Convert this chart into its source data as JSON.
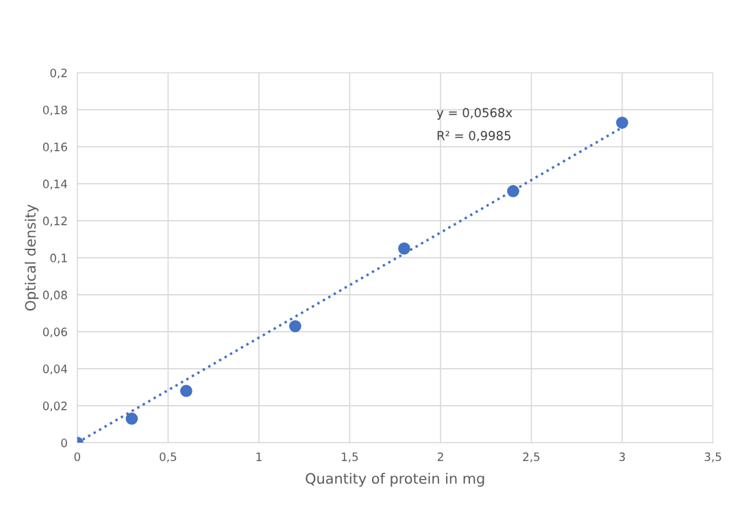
{
  "chart_data": {
    "type": "scatter",
    "xlabel": "Quantity of protein in mg",
    "ylabel": "Optical density",
    "series": [
      {
        "color": "#4472c4",
        "marker": "circle",
        "x": [
          0,
          0.3,
          0.6,
          1.2,
          1.8,
          2.4,
          3
        ],
        "values": [
          0,
          0.013,
          0.028,
          0.063,
          0.105,
          0.136,
          0.173
        ]
      },
      {
        "type": "line",
        "color": "#4472c4",
        "line_style": "dotted",
        "marker": "none",
        "x": [
          0,
          3
        ],
        "values": [
          0,
          0.1704
        ]
      }
    ],
    "annotations": [
      "y = 0,0568x",
      "R² = 0,9985"
    ],
    "xlim": [
      0,
      3.5
    ],
    "ylim": [
      0,
      0.2
    ],
    "xticks": [
      0,
      {
        "value": 0.5,
        "label": "0,5"
      },
      1,
      {
        "value": 1.5,
        "label": "1,5"
      },
      2,
      {
        "value": 2.5,
        "label": "2,5"
      },
      3,
      {
        "value": 3.5,
        "label": "3,5"
      }
    ],
    "yticks": [
      0,
      {
        "value": 0.02,
        "label": "0,02"
      },
      {
        "value": 0.04,
        "label": "0,04"
      },
      {
        "value": 0.06,
        "label": "0,06"
      },
      {
        "value": 0.08,
        "label": "0,08"
      },
      {
        "value": 0.1,
        "label": "0,1"
      },
      {
        "value": 0.12,
        "label": "0,12"
      },
      {
        "value": 0.14,
        "label": "0,14"
      },
      {
        "value": 0.16,
        "label": "0,16"
      },
      {
        "value": 0.18,
        "label": "0,18"
      },
      {
        "value": 0.2,
        "label": "0,2"
      }
    ],
    "grid": true,
    "legend": false
  }
}
